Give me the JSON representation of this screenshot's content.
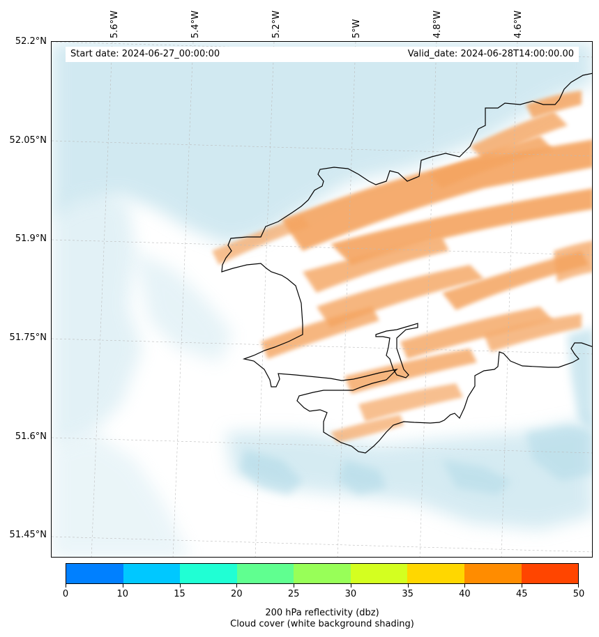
{
  "header": {
    "start_date": "Start date: 2024-06-27_00:00:00",
    "valid_date": "Valid_date: 2024-06-28T14:00:00.00"
  },
  "map": {
    "lon_labels": [
      "5.6°W",
      "5.4°W",
      "5.2°W",
      "5°W",
      "4.8°W",
      "4.6°W"
    ],
    "lat_labels": [
      "52.2°N",
      "52.05°N",
      "51.9°N",
      "51.75°N",
      "51.6°N",
      "51.45°N"
    ],
    "cloud_color": "#add8e6",
    "reflectivity_color": "#f4a460",
    "coast_color": "#000000"
  },
  "colorbar": {
    "ticks": [
      "0",
      "10",
      "15",
      "20",
      "25",
      "30",
      "35",
      "40",
      "45",
      "50"
    ],
    "colors": [
      "#0080ff",
      "#00c8ff",
      "#20ffd4",
      "#60ff90",
      "#98ff58",
      "#d4ff20",
      "#ffd700",
      "#ff8c00",
      "#ff4500"
    ],
    "caption_line1": "200 hPa reflectivity (dbz)",
    "caption_line2": "Cloud cover (white background shading)"
  }
}
